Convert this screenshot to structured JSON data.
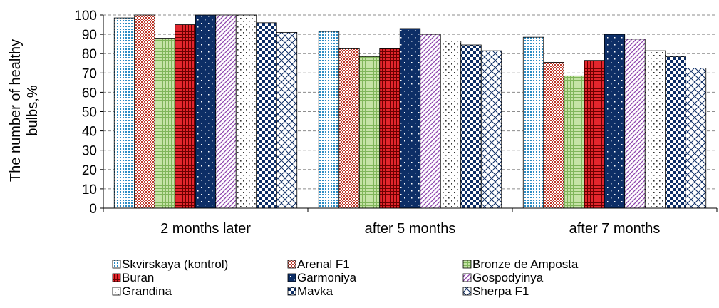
{
  "chart_data": {
    "type": "bar",
    "title": "",
    "xlabel": "",
    "ylabel": "The number of healthy bulbs,%",
    "ylim": [
      0,
      100
    ],
    "yticks": [
      0,
      10,
      20,
      30,
      40,
      50,
      60,
      70,
      80,
      90,
      100
    ],
    "grid": true,
    "legend_position": "bottom",
    "categories": [
      "2 months later",
      "after 5 months",
      "after 7 months"
    ],
    "series": [
      {
        "name": "Skvirskaya (kontrol)",
        "values": [
          98.5,
          91.5,
          88.5
        ],
        "color": "#ffffff",
        "pattern_color": "#2b8cc4",
        "pattern": "small-dots-dense"
      },
      {
        "name": "Arenal F1",
        "values": [
          100,
          82.5,
          75.5
        ],
        "color": "#ffffff",
        "pattern_color": "#c0392b",
        "pattern": "small-checker"
      },
      {
        "name": "Bronze de Amposta",
        "values": [
          88,
          78.5,
          68.5
        ],
        "color": "#c5e3a6",
        "pattern_color": "#7fb55a",
        "pattern": "fine-grid"
      },
      {
        "name": "Buran",
        "values": [
          95,
          82.5,
          76.5
        ],
        "color": "#e3262d",
        "pattern_color": "#6b0000",
        "pattern": "dark-grid"
      },
      {
        "name": "Garmoniya",
        "values": [
          100,
          93,
          90
        ],
        "color": "#0d2e66",
        "pattern_color": "#ffffff",
        "pattern": "sparse-dots"
      },
      {
        "name": "Gospodyinya",
        "values": [
          100,
          90,
          87.5
        ],
        "color": "#ffffff",
        "pattern_color": "#8e44ad",
        "pattern": "diagonal-lines"
      },
      {
        "name": "Grandina",
        "values": [
          100,
          86.5,
          81.5
        ],
        "color": "#ffffff",
        "pattern_color": "#333333",
        "pattern": "dots-grid"
      },
      {
        "name": "Mavka",
        "values": [
          96,
          84.5,
          78.5
        ],
        "color": "#ffffff",
        "pattern_color": "#0d2e66",
        "pattern": "checker"
      },
      {
        "name": "Sherpa F1",
        "values": [
          91,
          81.5,
          72.5
        ],
        "color": "#ffffff",
        "pattern_color": "#0d2e66",
        "pattern": "crosshatch"
      }
    ]
  }
}
